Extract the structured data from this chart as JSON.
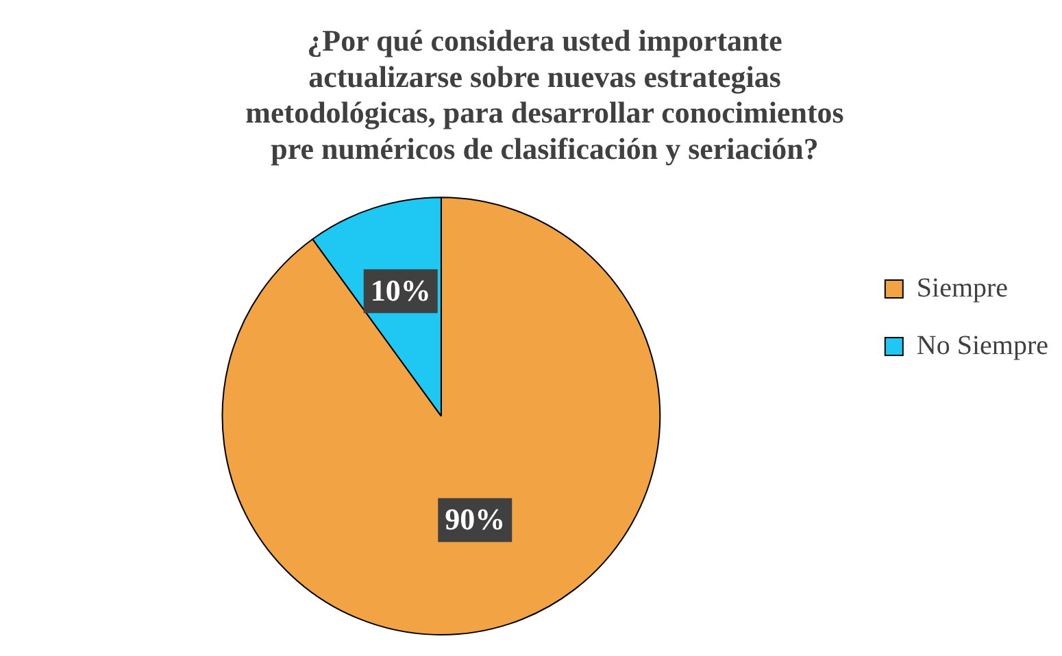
{
  "chart_data": {
    "type": "pie",
    "title": "¿Por qué considera usted importante actualizarse sobre nuevas estrategias metodológicas, para desarrollar conocimientos pre numéricos de clasificación y seriación?",
    "categories": [
      "Siempre",
      "No Siempre"
    ],
    "values": [
      90,
      10
    ],
    "value_labels": [
      "90%",
      "10%"
    ],
    "colors": [
      "#f2a444",
      "#1ec8f2"
    ],
    "legend": "right"
  }
}
